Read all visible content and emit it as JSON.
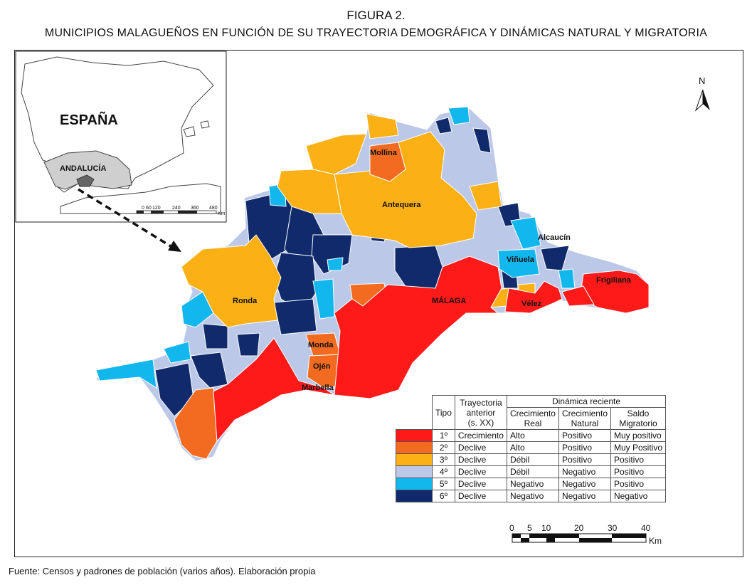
{
  "figure": {
    "label": "FIGURA 2.",
    "title": "MUNICIPIOS MALAGUEÑOS EN FUNCIÓN DE SU TRAYECTORIA DEMOGRÁFICA Y DINÁMICAS NATURAL Y MIGRATORIA",
    "source": "Fuente: Censos y padrones de población (varios años). Elaboración propia"
  },
  "inset": {
    "country": "ESPAÑA",
    "region": "ANDALUCÍA",
    "scale_ticks": [
      "0",
      "60",
      "120",
      "240",
      "360",
      "480"
    ],
    "scale_unit": "Km"
  },
  "north": "N",
  "places": [
    "Mollina",
    "Antequera",
    "Alcaucín",
    "Viñuela",
    "Frigiliana",
    "Ronda",
    "MÁLAGA",
    "Vélez",
    "Monda",
    "Ojén",
    "Marbella"
  ],
  "legend": {
    "header_tipo": "Tipo",
    "header_trayectoria": [
      "Trayectoria",
      "anterior",
      "(s. XX)"
    ],
    "header_dinamica": "Dinámica reciente",
    "header_crec_real": [
      "Crecimiento",
      "Real"
    ],
    "header_crec_natural": [
      "Crecimiento",
      "Natural"
    ],
    "header_saldo": [
      "Saldo",
      "Migratorio"
    ],
    "rows": [
      {
        "color": "#ff1a1a",
        "tipo": "1º",
        "trayectoria": "Crecimiento",
        "real": "Alto",
        "natural": "Positivo",
        "saldo": "Muy positivo"
      },
      {
        "color": "#f26b21",
        "tipo": "2º",
        "trayectoria": "Declive",
        "real": "Alto",
        "natural": "Positivo",
        "saldo": "Muy Positivo"
      },
      {
        "color": "#fbb116",
        "tipo": "3º",
        "trayectoria": "Declive",
        "real": "Débil",
        "natural": "Positivo",
        "saldo": "Positivo"
      },
      {
        "color": "#bcc8e8",
        "tipo": "4º",
        "trayectoria": "Declive",
        "real": "Débil",
        "natural": "Negativo",
        "saldo": "Positivo"
      },
      {
        "color": "#12b7ee",
        "tipo": "5º",
        "trayectoria": "Declive",
        "real": "Negativo",
        "natural": "Negativo",
        "saldo": "Positivo"
      },
      {
        "color": "#102a6b",
        "tipo": "6º",
        "trayectoria": "Declive",
        "real": "Negativo",
        "natural": "Negativo",
        "saldo": "Negativo"
      }
    ]
  },
  "scale": {
    "ticks": [
      "0",
      "5",
      "10",
      "20",
      "30",
      "40"
    ],
    "unit": "Km"
  }
}
